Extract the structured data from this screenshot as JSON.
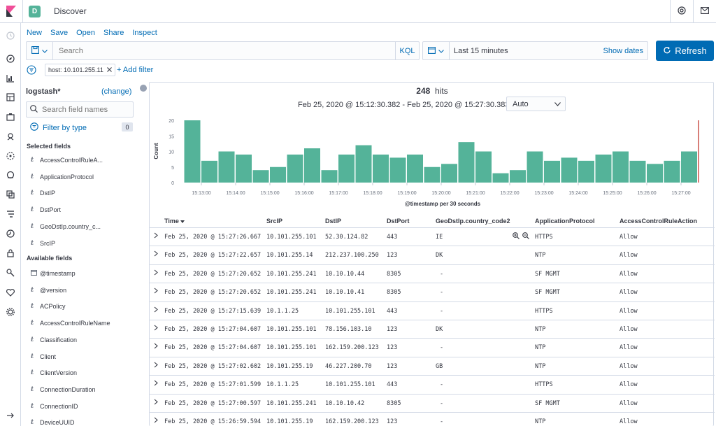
{
  "header": {
    "space_initial": "D",
    "app_title": "Discover"
  },
  "top_menu": [
    "New",
    "Save",
    "Open",
    "Share",
    "Inspect"
  ],
  "query": {
    "placeholder": "Search",
    "language": "KQL"
  },
  "date_picker": {
    "range": "Last 15 minutes",
    "show_dates": "Show dates"
  },
  "refresh_label": "Refresh",
  "filter": {
    "pill": "host: 10.101.255.11",
    "add": "+ Add filter"
  },
  "sidebar": {
    "index": "logstash*",
    "change": "(change)",
    "search_placeholder": "Search field names",
    "filter_by_type": "Filter by type",
    "filter_count": "0",
    "selected_title": "Selected fields",
    "selected": [
      {
        "type": "t",
        "name": "AccessControlRuleA..."
      },
      {
        "type": "t",
        "name": "ApplicationProtocol"
      },
      {
        "type": "t",
        "name": "DstIP"
      },
      {
        "type": "t",
        "name": "DstPort"
      },
      {
        "type": "t",
        "name": "GeoDstIp.country_c..."
      },
      {
        "type": "t",
        "name": "SrcIP"
      }
    ],
    "available_title": "Available fields",
    "available": [
      {
        "type": "clock",
        "name": "@timestamp"
      },
      {
        "type": "t",
        "name": "@version"
      },
      {
        "type": "t",
        "name": "ACPolicy"
      },
      {
        "type": "t",
        "name": "AccessControlRuleName"
      },
      {
        "type": "t",
        "name": "Classification"
      },
      {
        "type": "t",
        "name": "Client"
      },
      {
        "type": "t",
        "name": "ClientVersion"
      },
      {
        "type": "t",
        "name": "ConnectionDuration"
      },
      {
        "type": "t",
        "name": "ConnectionID"
      },
      {
        "type": "t",
        "name": "DeviceUUID"
      }
    ]
  },
  "results": {
    "hits_count": "248",
    "hits_label": "hits",
    "time_range": "Feb 25, 2020 @ 15:12:30.382 - Feb 25, 2020 @ 15:27:30.383 —",
    "interval": "Auto"
  },
  "chart_data": {
    "type": "bar",
    "ylabel": "Count",
    "xlabel": "@timestamp per 30 seconds",
    "ylim": [
      0,
      20
    ],
    "y_ticks": [
      "0",
      "5",
      "10",
      "15",
      "20"
    ],
    "x_tick_labels": [
      "15:13:00",
      "15:14:00",
      "15:15:00",
      "15:16:00",
      "15:17:00",
      "15:18:00",
      "15:19:00",
      "15:20:00",
      "15:21:00",
      "15:22:00",
      "15:23:00",
      "15:24:00",
      "15:25:00",
      "15:26:00",
      "15:27:00"
    ],
    "values": [
      20,
      7,
      10,
      9,
      4,
      5,
      9,
      11,
      4,
      9,
      12,
      9,
      8,
      9,
      5,
      6,
      13,
      10,
      3,
      4,
      10,
      7,
      8,
      7,
      9,
      10,
      7,
      6,
      7,
      10
    ],
    "bar_color": "#54b399",
    "now_marker_color": "#bd271e"
  },
  "table": {
    "columns": [
      "Time",
      "SrcIP",
      "DstIP",
      "DstPort",
      "GeoDstIp.country_code2",
      "ApplicationProtocol",
      "AccessControlRuleAction"
    ],
    "rows": [
      [
        "Feb 25, 2020 @ 15:27:26.667",
        "10.101.255.101",
        "52.30.124.82",
        "443",
        "IE",
        "HTTPS",
        "Allow"
      ],
      [
        "Feb 25, 2020 @ 15:27:22.657",
        "10.101.255.14",
        "212.237.100.250",
        "123",
        "DK",
        "NTP",
        "Allow"
      ],
      [
        "Feb 25, 2020 @ 15:27:20.652",
        "10.101.255.241",
        "10.10.10.44",
        "8305",
        "-",
        "SF MGMT",
        "Allow"
      ],
      [
        "Feb 25, 2020 @ 15:27:20.652",
        "10.101.255.241",
        "10.10.10.41",
        "8305",
        "-",
        "SF MGMT",
        "Allow"
      ],
      [
        "Feb 25, 2020 @ 15:27:15.639",
        "10.1.1.25",
        "10.101.255.101",
        "443",
        "-",
        "HTTPS",
        "Allow"
      ],
      [
        "Feb 25, 2020 @ 15:27:04.607",
        "10.101.255.101",
        "78.156.103.10",
        "123",
        "DK",
        "NTP",
        "Allow"
      ],
      [
        "Feb 25, 2020 @ 15:27:04.607",
        "10.101.255.101",
        "162.159.200.123",
        "123",
        "-",
        "NTP",
        "Allow"
      ],
      [
        "Feb 25, 2020 @ 15:27:02.602",
        "10.101.255.19",
        "46.227.200.70",
        "123",
        "GB",
        "NTP",
        "Allow"
      ],
      [
        "Feb 25, 2020 @ 15:27:01.599",
        "10.1.1.25",
        "10.101.255.101",
        "443",
        "-",
        "HTTPS",
        "Allow"
      ],
      [
        "Feb 25, 2020 @ 15:27:00.597",
        "10.101.255.241",
        "10.10.10.42",
        "8305",
        "-",
        "SF MGMT",
        "Allow"
      ],
      [
        "Feb 25, 2020 @ 15:26:59.594",
        "10.101.255.19",
        "162.159.200.123",
        "123",
        "-",
        "NTP",
        "Allow"
      ]
    ]
  }
}
